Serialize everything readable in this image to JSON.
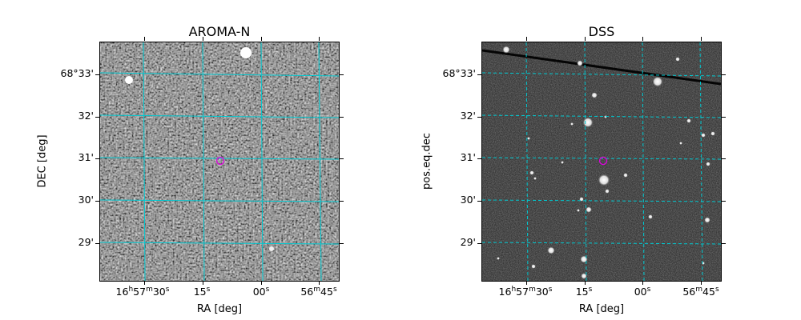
{
  "panels": [
    {
      "title": "AROMA-N",
      "xlabel": "RA [deg]",
      "ylabel": "DEC [deg]",
      "ra_ticks": [
        "16h57m30s",
        "15s",
        "00s",
        "56m45s"
      ],
      "dec_ticks": [
        "68°33'",
        "32'",
        "31'",
        "30'",
        "29'"
      ]
    },
    {
      "title": "DSS",
      "xlabel": "RA [deg]",
      "ylabel": "pos.eq.dec",
      "ra_ticks": [
        "16h57m30s",
        "15s",
        "00s",
        "56m45s"
      ],
      "dec_ticks": [
        "68°33'",
        "32'",
        "31'",
        "30'",
        "29'"
      ]
    }
  ],
  "colors": {
    "grid": "#00c8d0",
    "target_marker": "#e000e0"
  }
}
